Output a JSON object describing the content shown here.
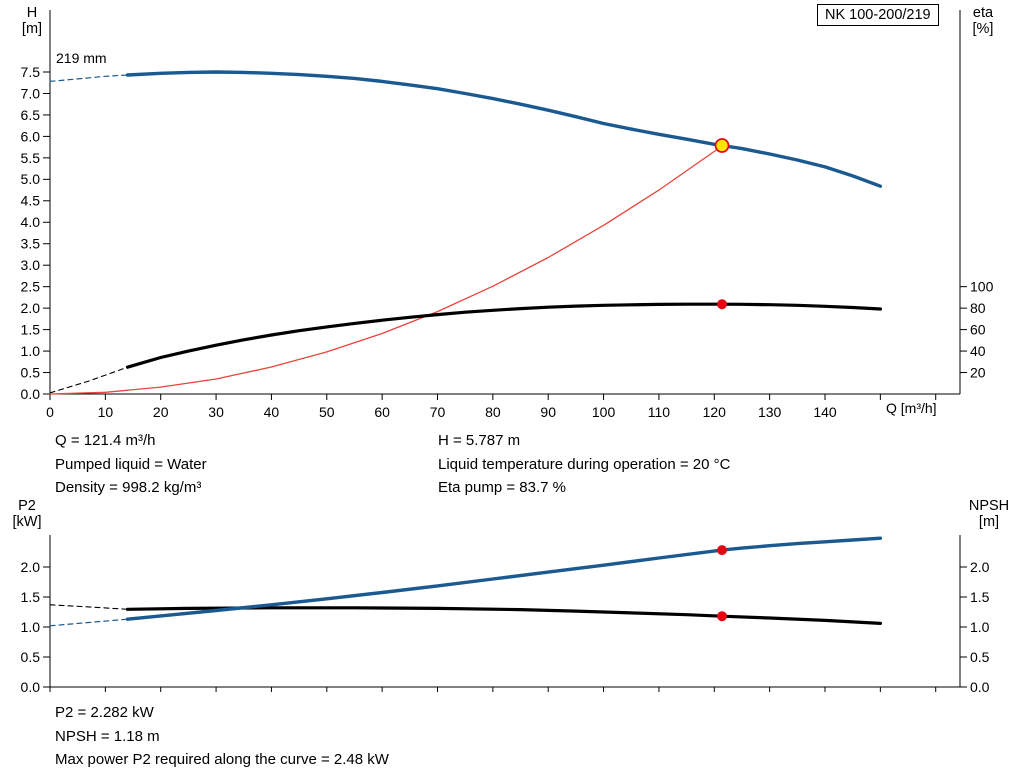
{
  "pump": {
    "model": "NK 100-200/219"
  },
  "top_chart": {
    "y_left_label_1": "H",
    "y_left_label_2": "[m]",
    "y_right_label_1": "eta",
    "y_right_label_2": "[%]",
    "x_label": "Q [m³/h]",
    "curve_label": "219 mm"
  },
  "bottom_chart": {
    "y_left_label_1": "P2",
    "y_left_label_2": "[kW]",
    "y_right_label_1": "NPSH",
    "y_right_label_2": "[m]"
  },
  "operating_data": {
    "left": [
      "Q = 121.4 m³/h",
      "Pumped liquid = Water",
      "Density = 998.2 kg/m³"
    ],
    "right": [
      "H = 5.787 m",
      "Liquid temperature during operation = 20 °C",
      "Eta pump = 83.7 %"
    ]
  },
  "power_data": [
    "P2 = 2.282 kW",
    "NPSH = 1.18 m",
    "Max power P2 required along the curve = 2.48 kW"
  ],
  "colors": {
    "curve_blue": "#1a5a91",
    "curve_black": "#000000",
    "curve_red": "#e8453c",
    "marker_red": "#e30613",
    "marker_yellow": "#ffe500",
    "axis": "#000000"
  },
  "chart_data": [
    {
      "type": "line",
      "title": "NK 100-200/219 QH and efficiency curves",
      "x_axis": {
        "label": "Q [m³/h]",
        "min": 0,
        "max": 164,
        "ticks": [
          "0",
          "10",
          "20",
          "30",
          "40",
          "50",
          "60",
          "70",
          "80",
          "90",
          "100",
          "110",
          "120",
          "130",
          "140"
        ],
        "unlabeled_ticks": [
          150,
          160
        ]
      },
      "y_axis_left": {
        "label": "H [m]",
        "min": 0,
        "max": 7.5,
        "ticks": [
          "0.0",
          "0.5",
          "1.0",
          "1.5",
          "2.0",
          "2.5",
          "3.0",
          "3.5",
          "4.0",
          "4.5",
          "5.0",
          "5.5",
          "6.0",
          "6.5",
          "7.0",
          "7.5"
        ]
      },
      "y_axis_right": {
        "label": "eta [%]",
        "ticks": [
          "20",
          "40",
          "60",
          "80",
          "100"
        ],
        "scale_note": "eta value e is plotted at head position e/40 m"
      },
      "series": [
        {
          "name": "system-curve-to-duty-point",
          "axis": "H",
          "color": "red",
          "style": "solid",
          "width": 1.3,
          "points": [
            [
              0,
              0
            ],
            [
              10,
              0.04
            ],
            [
              20,
              0.16
            ],
            [
              30,
              0.35
            ],
            [
              40,
              0.63
            ],
            [
              50,
              0.98
            ],
            [
              60,
              1.41
            ],
            [
              70,
              1.92
            ],
            [
              80,
              2.51
            ],
            [
              90,
              3.18
            ],
            [
              100,
              3.93
            ],
            [
              110,
              4.75
            ],
            [
              120,
              5.65
            ],
            [
              121.4,
              5.787
            ]
          ]
        },
        {
          "name": "efficiency-curve-dashed-leadin",
          "axis": "eta",
          "color": "black",
          "style": "dashed",
          "width": 1.1,
          "points": [
            [
              0,
              1
            ],
            [
              7,
              12
            ],
            [
              14,
              25
            ]
          ]
        },
        {
          "name": "efficiency-curve",
          "axis": "eta",
          "color": "black",
          "style": "solid",
          "width": 3.2,
          "points": [
            [
              14,
              25
            ],
            [
              20,
              34
            ],
            [
              25,
              40
            ],
            [
              30,
              45.5
            ],
            [
              35,
              50.5
            ],
            [
              40,
              55
            ],
            [
              45,
              59
            ],
            [
              50,
              62.5
            ],
            [
              55,
              65.8
            ],
            [
              60,
              68.8
            ],
            [
              65,
              71.5
            ],
            [
              70,
              74
            ],
            [
              75,
              76.2
            ],
            [
              80,
              78
            ],
            [
              85,
              79.6
            ],
            [
              90,
              80.9
            ],
            [
              95,
              81.9
            ],
            [
              100,
              82.6
            ],
            [
              105,
              83.1
            ],
            [
              110,
              83.5
            ],
            [
              115,
              83.7
            ],
            [
              121.4,
              83.7
            ],
            [
              125,
              83.6
            ],
            [
              130,
              83.2
            ],
            [
              135,
              82.6
            ],
            [
              140,
              81.7
            ],
            [
              145,
              80.6
            ],
            [
              150,
              79.2
            ]
          ]
        },
        {
          "name": "head-curve-dashed-leadin",
          "axis": "H",
          "color": "blue",
          "style": "dashed",
          "width": 1.2,
          "points": [
            [
              0,
              7.28
            ],
            [
              5,
              7.34
            ],
            [
              10,
              7.4
            ],
            [
              14,
              7.43
            ]
          ]
        },
        {
          "name": "head-curve-219mm",
          "axis": "H",
          "color": "blue",
          "style": "solid",
          "width": 3.4,
          "points": [
            [
              14,
              7.43
            ],
            [
              20,
              7.47
            ],
            [
              25,
              7.49
            ],
            [
              30,
              7.5
            ],
            [
              35,
              7.49
            ],
            [
              40,
              7.47
            ],
            [
              45,
              7.44
            ],
            [
              50,
              7.4
            ],
            [
              55,
              7.35
            ],
            [
              60,
              7.28
            ],
            [
              65,
              7.2
            ],
            [
              70,
              7.11
            ],
            [
              75,
              7.0
            ],
            [
              80,
              6.88
            ],
            [
              85,
              6.75
            ],
            [
              90,
              6.61
            ],
            [
              95,
              6.46
            ],
            [
              100,
              6.3
            ],
            [
              105,
              6.17
            ],
            [
              110,
              6.05
            ],
            [
              115,
              5.935
            ],
            [
              120,
              5.815
            ],
            [
              121.4,
              5.787
            ],
            [
              125,
              5.715
            ],
            [
              130,
              5.59
            ],
            [
              135,
              5.45
            ],
            [
              140,
              5.29
            ],
            [
              145,
              5.08
            ],
            [
              150,
              4.84
            ]
          ]
        }
      ],
      "markers": [
        {
          "name": "duty-point",
          "axis": "H",
          "x": 121.4,
          "y": 5.787,
          "r": 6.5,
          "fill": "yellow",
          "stroke": "red"
        },
        {
          "name": "efficiency-point",
          "axis": "eta",
          "x": 121.4,
          "y": 83.7,
          "r": 5,
          "fill": "red"
        }
      ],
      "annotations": [
        {
          "text": "219 mm",
          "x": 2,
          "y": 7.7
        }
      ]
    },
    {
      "type": "line",
      "title": "P2 and NPSH curves",
      "x_axis": {
        "label": "",
        "min": 0,
        "max": 164,
        "ticks": [],
        "unlabeled_ticks": [
          0,
          10,
          20,
          30,
          40,
          50,
          60,
          70,
          80,
          90,
          100,
          110,
          120,
          130,
          140,
          150,
          160
        ]
      },
      "y_axis_left": {
        "label": "P2 [kW]",
        "min": 0,
        "max": 2.5,
        "ticks": [
          "0.0",
          "0.5",
          "1.0",
          "1.5",
          "2.0"
        ]
      },
      "y_axis_right": {
        "label": "NPSH [m]",
        "min": 0,
        "max": 2.5,
        "ticks": [
          "0.0",
          "0.5",
          "1.0",
          "1.5",
          "2.0"
        ]
      },
      "series": [
        {
          "name": "npsh-curve-dashed-leadin",
          "axis": "NPSH",
          "color": "black",
          "style": "dashed",
          "width": 1.1,
          "points": [
            [
              0,
              1.37
            ],
            [
              7,
              1.335
            ],
            [
              14,
              1.295
            ]
          ]
        },
        {
          "name": "npsh-curve",
          "axis": "NPSH",
          "color": "black",
          "style": "solid",
          "width": 3.2,
          "points": [
            [
              14,
              1.295
            ],
            [
              25,
              1.31
            ],
            [
              40,
              1.32
            ],
            [
              55,
              1.32
            ],
            [
              70,
              1.31
            ],
            [
              85,
              1.29
            ],
            [
              95,
              1.265
            ],
            [
              105,
              1.235
            ],
            [
              115,
              1.205
            ],
            [
              121.4,
              1.18
            ],
            [
              130,
              1.15
            ],
            [
              140,
              1.11
            ],
            [
              150,
              1.06
            ]
          ]
        },
        {
          "name": "p2-curve-dashed-leadin",
          "axis": "P2",
          "color": "blue",
          "style": "dashed",
          "width": 1.2,
          "points": [
            [
              0,
              1.02
            ],
            [
              7,
              1.075
            ],
            [
              14,
              1.13
            ]
          ]
        },
        {
          "name": "p2-curve",
          "axis": "P2",
          "color": "blue",
          "style": "solid",
          "width": 3.4,
          "points": [
            [
              14,
              1.13
            ],
            [
              20,
              1.185
            ],
            [
              30,
              1.275
            ],
            [
              40,
              1.37
            ],
            [
              50,
              1.47
            ],
            [
              60,
              1.575
            ],
            [
              70,
              1.685
            ],
            [
              80,
              1.8
            ],
            [
              90,
              1.915
            ],
            [
              100,
              2.03
            ],
            [
              110,
              2.15
            ],
            [
              121.4,
              2.282
            ],
            [
              125,
              2.315
            ],
            [
              130,
              2.355
            ],
            [
              135,
              2.39
            ],
            [
              140,
              2.42
            ],
            [
              145,
              2.45
            ],
            [
              150,
              2.48
            ]
          ]
        }
      ],
      "markers": [
        {
          "name": "p2-point",
          "axis": "P2",
          "x": 121.4,
          "y": 2.282,
          "r": 5,
          "fill": "red"
        },
        {
          "name": "npsh-point",
          "axis": "NPSH",
          "x": 121.4,
          "y": 1.18,
          "r": 5,
          "fill": "red"
        }
      ]
    }
  ]
}
